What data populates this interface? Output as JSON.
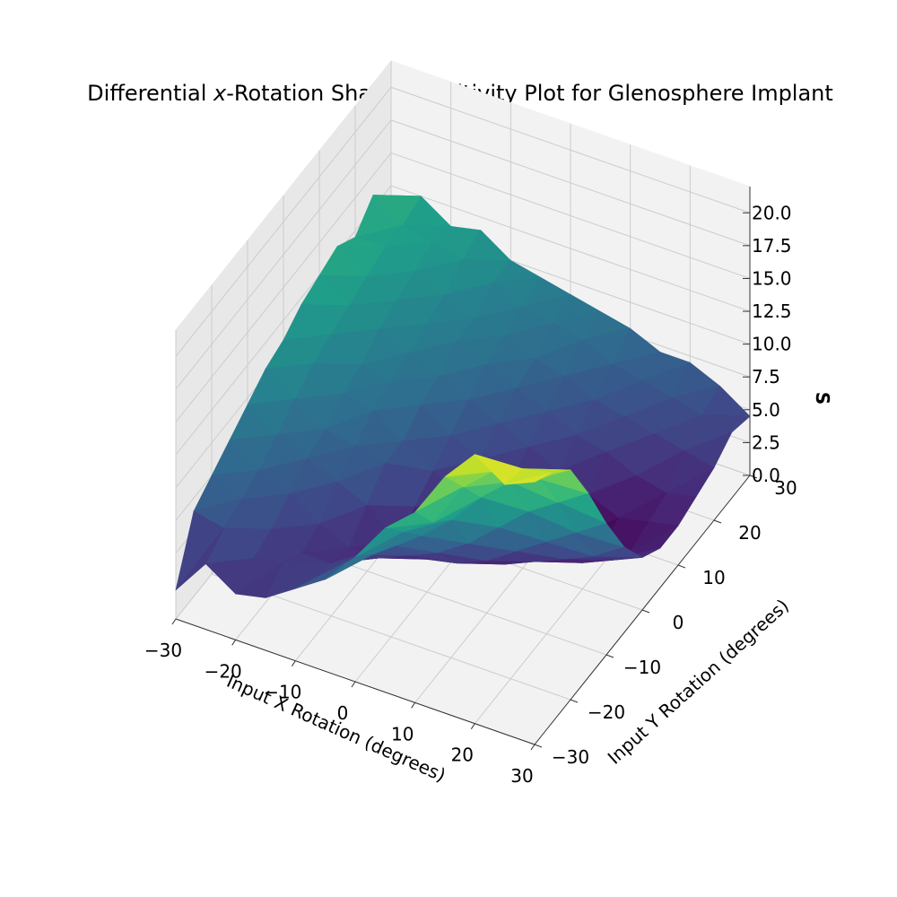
{
  "chart_data": {
    "type": "surface3d",
    "title_prefix": "Differential ",
    "title_var": "x",
    "title_suffix": "-Rotation Shape Sensitivity Plot for Glenosphere Implant",
    "xlabel": "Input X Rotation (degrees)",
    "ylabel": "Input Y Rotation (degrees)",
    "zlabel": "S",
    "xlim": [
      -30,
      30
    ],
    "ylim": [
      -30,
      30
    ],
    "zlim": [
      0,
      22
    ],
    "x_ticks": [
      -30,
      -20,
      -10,
      0,
      10,
      20,
      30
    ],
    "y_ticks": [
      -30,
      -20,
      -10,
      0,
      10,
      20,
      30
    ],
    "z_ticks": [
      0.0,
      2.5,
      5.0,
      7.5,
      10.0,
      12.5,
      15.0,
      17.5,
      20.0
    ],
    "x_tick_labels": [
      "−30",
      "−20",
      "−10",
      "0",
      "10",
      "20",
      "30"
    ],
    "y_tick_labels": [
      "−30",
      "−20",
      "−10",
      "0",
      "10",
      "20",
      "30"
    ],
    "z_tick_labels": [
      "0.0",
      "2.5",
      "5.0",
      "7.5",
      "10.0",
      "12.5",
      "15.0",
      "17.5",
      "20.0"
    ],
    "grid": true,
    "colormap": "viridis",
    "x": [
      -30,
      -25,
      -20,
      -15,
      -10,
      -5,
      0,
      5,
      10,
      15,
      20,
      25,
      30
    ],
    "y": [
      -30,
      -25,
      -20,
      -15,
      -10,
      -5,
      0,
      5,
      10,
      15,
      20,
      25,
      30
    ],
    "z": [
      [
        2.2,
        6.5,
        7.5,
        8.5,
        9.5,
        10.5,
        11.0,
        12.0,
        12.5,
        13.0,
        12.0,
        13.5,
        11.5
      ],
      [
        5.0,
        6.0,
        6.5,
        7.0,
        8.0,
        9.0,
        10.0,
        10.5,
        11.0,
        11.5,
        12.0,
        12.0,
        12.5
      ],
      [
        3.5,
        4.5,
        5.0,
        6.0,
        7.0,
        7.5,
        8.5,
        9.0,
        10.0,
        10.5,
        11.0,
        11.5,
        11.0
      ],
      [
        4.0,
        5.0,
        4.0,
        4.5,
        6.0,
        7.0,
        8.0,
        8.5,
        9.0,
        9.5,
        10.0,
        11.0,
        11.5
      ],
      [
        5.5,
        4.5,
        4.0,
        3.5,
        5.0,
        6.5,
        6.5,
        7.5,
        8.0,
        9.0,
        9.0,
        10.0,
        10.0
      ],
      [
        7.0,
        6.5,
        5.5,
        3.5,
        3.0,
        4.0,
        5.0,
        6.0,
        7.0,
        8.0,
        8.5,
        9.0,
        9.5
      ],
      [
        9.5,
        8.0,
        7.0,
        4.5,
        2.5,
        2.0,
        3.5,
        5.0,
        6.0,
        7.0,
        7.5,
        8.5,
        9.0
      ],
      [
        12.5,
        10.5,
        8.5,
        5.5,
        3.0,
        1.5,
        2.0,
        4.0,
        5.0,
        6.0,
        7.0,
        8.0,
        8.5
      ],
      [
        14.5,
        12.0,
        10.5,
        7.0,
        4.0,
        2.0,
        1.0,
        2.5,
        4.0,
        5.0,
        6.0,
        7.0,
        8.0
      ],
      [
        18.0,
        15.5,
        13.0,
        9.0,
        5.5,
        3.0,
        1.5,
        1.0,
        3.0,
        4.5,
        5.5,
        6.5,
        7.0
      ],
      [
        20.5,
        17.5,
        15.0,
        11.0,
        7.0,
        4.0,
        2.0,
        1.5,
        2.0,
        3.5,
        5.0,
        6.0,
        7.0
      ],
      [
        19.0,
        18.5,
        16.0,
        12.5,
        8.5,
        5.0,
        3.0,
        2.0,
        2.5,
        3.0,
        4.5,
        5.5,
        6.0
      ],
      [
        20.0,
        19.0,
        17.5,
        14.0,
        10.0,
        6.5,
        4.0,
        3.0,
        3.0,
        3.5,
        4.0,
        5.0,
        4.5
      ]
    ]
  }
}
